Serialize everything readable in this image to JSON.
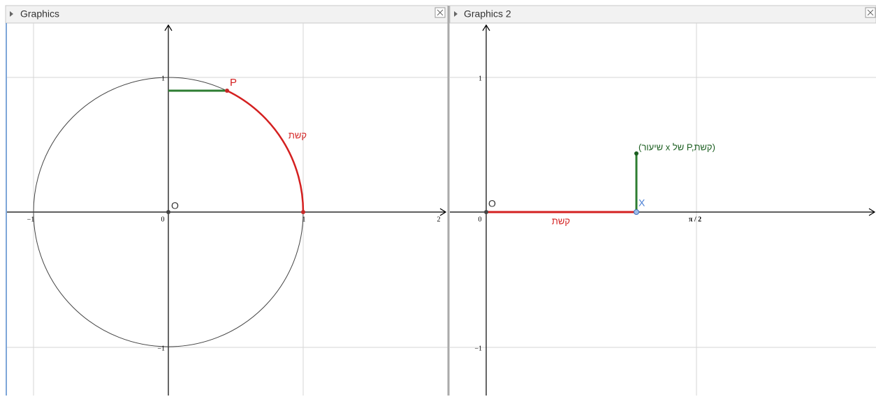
{
  "panels": [
    {
      "title": "Graphics",
      "x_tick_labels": [
        "−1",
        "0",
        "1",
        "2"
      ],
      "y_tick_labels": [
        "1",
        "−1"
      ],
      "labels": {
        "point_p": "P",
        "origin": "O",
        "arc": "קשת"
      }
    },
    {
      "title": "Graphics 2",
      "x_tick_labels": [
        "0",
        "π / 2"
      ],
      "y_tick_labels": [
        "1",
        "−1"
      ],
      "labels": {
        "origin": "O",
        "point_x": "X",
        "segment": "קשת",
        "point": "(שיעור x של P,קשת)"
      }
    }
  ]
}
